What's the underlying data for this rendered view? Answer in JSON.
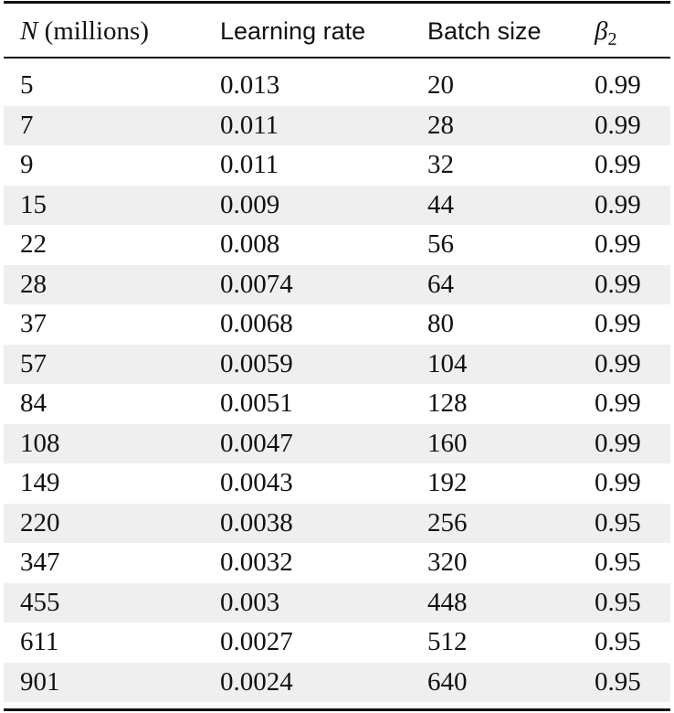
{
  "table": {
    "header": [
      {
        "variable": "N",
        "unit": "(millions)"
      },
      "Learning rate",
      "Batch size",
      {
        "symbol": "β",
        "subscript": "2"
      }
    ],
    "rows": [
      [
        5,
        0.013,
        20,
        0.99
      ],
      [
        7,
        0.011,
        28,
        0.99
      ],
      [
        9,
        0.011,
        32,
        0.99
      ],
      [
        15,
        0.009,
        44,
        0.99
      ],
      [
        22,
        0.008,
        56,
        0.99
      ],
      [
        28,
        0.0074,
        64,
        0.99
      ],
      [
        37,
        0.0068,
        80,
        0.99
      ],
      [
        57,
        0.0059,
        104,
        0.99
      ],
      [
        84,
        0.0051,
        128,
        0.99
      ],
      [
        108,
        0.0047,
        160,
        0.99
      ],
      [
        149,
        0.0043,
        192,
        0.99
      ],
      [
        220,
        0.0038,
        256,
        0.95
      ],
      [
        347,
        0.0032,
        320,
        0.95
      ],
      [
        455,
        0.003,
        448,
        0.95
      ],
      [
        611,
        0.0027,
        512,
        0.95
      ],
      [
        901,
        0.0024,
        640,
        0.95
      ]
    ]
  }
}
